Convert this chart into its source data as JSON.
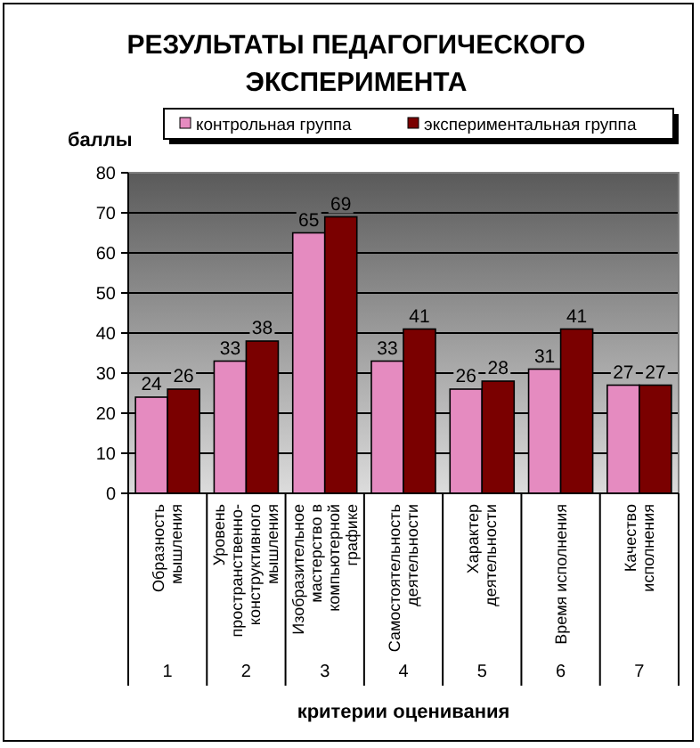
{
  "chart_data": {
    "type": "bar",
    "title": "РЕЗУЛЬТАТЫ ПЕДАГОГИЧЕСКОГО\nЭКСПЕРИМЕНТА",
    "ylabel": "баллы",
    "xlabel": "критерии оценивания",
    "categories": [
      "Образность\nмышления",
      "Уровень\nпространственно-\nконструктивного\nмышления",
      "Изобразительное\nмастерство в\nкомпьютерной\nграфике",
      "Самостоятельность\nдеятельности",
      "Характер\nдеятельности",
      "Время исполнения",
      "Качество\nисполнения"
    ],
    "annotations": [
      "1",
      "2",
      "3",
      "4",
      "5",
      "6",
      "7"
    ],
    "series": [
      {
        "name": "контрольная группа",
        "color": "#e58bc0",
        "values": [
          24,
          33,
          65,
          33,
          26,
          31,
          27
        ]
      },
      {
        "name": "экспериментальная группа",
        "color": "#7a0000",
        "values": [
          26,
          38,
          69,
          41,
          28,
          41,
          27
        ]
      }
    ],
    "ylim": [
      0,
      80
    ],
    "yticks": [
      0,
      10,
      20,
      30,
      40,
      50,
      60,
      70,
      80
    ],
    "grid": "y",
    "legend": "top",
    "data_labels": true
  }
}
